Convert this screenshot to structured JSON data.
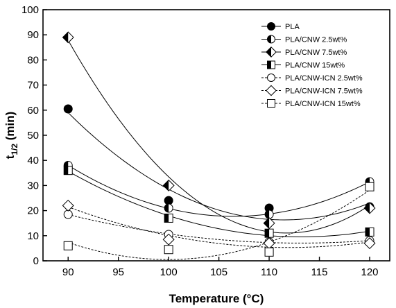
{
  "chart_data": {
    "type": "line",
    "xlabel": "Temperature (°C)",
    "ylabel": {
      "main": "t",
      "sub": "1/2",
      "unit": " (min)"
    },
    "xlim": [
      87.5,
      122
    ],
    "ylim": [
      0,
      100
    ],
    "xticks": [
      90,
      95,
      100,
      105,
      110,
      115,
      120
    ],
    "yticks": [
      0,
      10,
      20,
      30,
      40,
      50,
      60,
      70,
      80,
      90,
      100
    ],
    "x": [
      90,
      100,
      110,
      120
    ],
    "legend_position": "top-right",
    "grid": false,
    "series": [
      {
        "name": "PLA",
        "marker": "circle",
        "fill": "full",
        "line": "solid",
        "values": [
          60.5,
          24,
          21,
          21.5
        ]
      },
      {
        "name": "PLA/CNW 2.5wt%",
        "marker": "circle",
        "fill": "left",
        "line": "solid",
        "values": [
          38,
          21,
          18.5,
          31.5
        ]
      },
      {
        "name": "PLA/CNW 7.5wt%",
        "marker": "diamond",
        "fill": "left",
        "line": "solid",
        "values": [
          89,
          30,
          15,
          21
        ]
      },
      {
        "name": "PLA/CNW 15wt%",
        "marker": "square",
        "fill": "left",
        "line": "solid",
        "values": [
          36,
          17,
          11,
          11.5
        ]
      },
      {
        "name": "PLA/CNW-ICN 2.5wt%",
        "marker": "circle",
        "fill": "none",
        "line": "dashed",
        "values": [
          18.5,
          10.5,
          7.5,
          8
        ]
      },
      {
        "name": "PLA/CNW-ICN 7.5wt%",
        "marker": "diamond",
        "fill": "none",
        "line": "dashed",
        "values": [
          22,
          8.5,
          7,
          7
        ]
      },
      {
        "name": "PLA/CNW-ICN 15wt%",
        "marker": "square",
        "fill": "none",
        "line": "dashed",
        "values": [
          6,
          4.5,
          3.5,
          29.5
        ]
      }
    ]
  }
}
